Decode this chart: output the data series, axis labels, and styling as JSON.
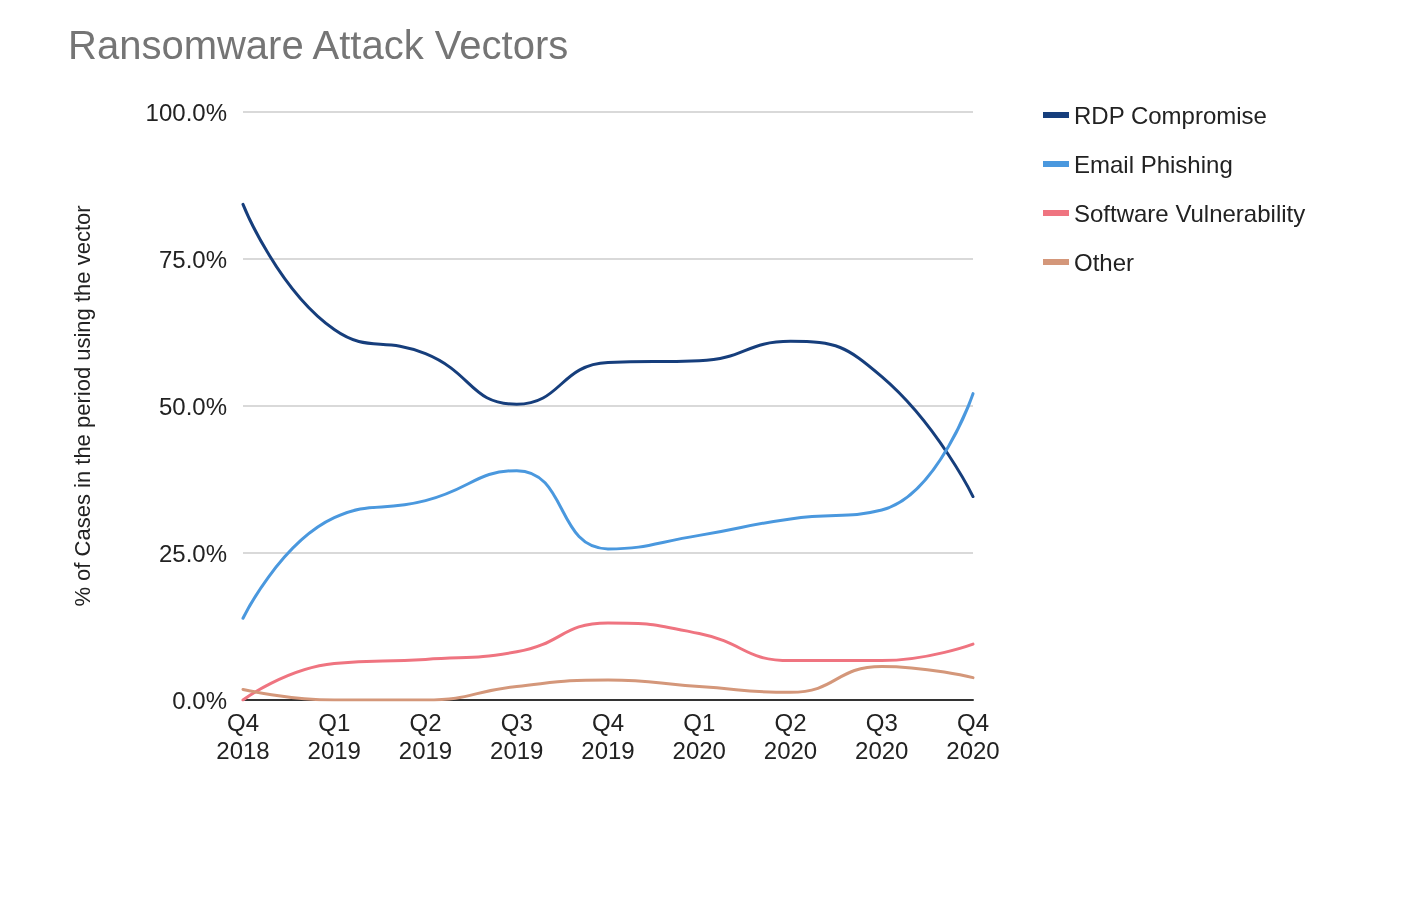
{
  "chart_data": {
    "type": "line",
    "title": "Ransomware Attack Vectors",
    "ylabel": "% of Cases in the period using the vector",
    "categories": [
      "Q4\n2018",
      "Q1\n2019",
      "Q2\n2019",
      "Q3\n2019",
      "Q4\n2019",
      "Q1\n2020",
      "Q2\n2020",
      "Q3\n2020",
      "Q4\n2020"
    ],
    "series": [
      {
        "name": "RDP Compromise",
        "color": "#163e7c",
        "values": [
          84.3,
          63,
          58.9,
          50.3,
          57.4,
          57.7,
          61,
          55,
          34.6
        ]
      },
      {
        "name": "Email Phishing",
        "color": "#4a98de",
        "values": [
          13.9,
          31,
          33.9,
          39,
          25.7,
          28,
          30.8,
          32.3,
          52.1
        ]
      },
      {
        "name": "Software Vulnerability",
        "color": "#ef7480",
        "values": [
          0,
          6.2,
          6.9,
          8.2,
          13.1,
          11.3,
          6.7,
          6.7,
          9.5
        ]
      },
      {
        "name": "Other",
        "color": "#d4977a",
        "values": [
          1.8,
          0,
          0,
          2.3,
          3.4,
          2.3,
          1.3,
          5.7,
          3.8
        ]
      }
    ],
    "ylim": [
      0,
      100
    ],
    "yticks": [
      {
        "value": 0,
        "label": "0.0%"
      },
      {
        "value": 25,
        "label": "25.0%"
      },
      {
        "value": 50,
        "label": "50.0%"
      },
      {
        "value": 75,
        "label": "75.0%"
      },
      {
        "value": 100,
        "label": "100.0%"
      }
    ],
    "grid": "y",
    "legend": "top right",
    "marker": "none",
    "line_style": "solid"
  }
}
